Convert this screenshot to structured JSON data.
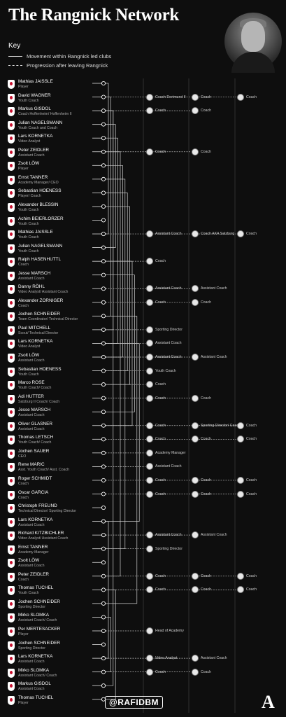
{
  "title": "The Rangnick Network",
  "key": {
    "heading": "Key",
    "solid_label": "Movement within Rangnick led clubs",
    "dashed_label": "Progression after leaving Rangnick"
  },
  "handle": "@RAFIDBM",
  "brand": "A",
  "people": [
    {
      "name": "Mathias JAISSLE",
      "role": "Player",
      "next": []
    },
    {
      "name": "David WAGNER",
      "role": "Youth Coach",
      "next": [
        "Coach Dortmund II",
        "Coach",
        "Coach"
      ]
    },
    {
      "name": "Markus GISDOL",
      "role": "Coach Hoffenheim/ Hoffenheim II",
      "next": [
        "Coach",
        "Coach"
      ]
    },
    {
      "name": "Julian NAGELSMANN",
      "role": "Youth Coach and Coach",
      "next": []
    },
    {
      "name": "Lars KORNETKA",
      "role": "Video Analyst",
      "next": []
    },
    {
      "name": "Peter ZEIDLER",
      "role": "Assistant Coach",
      "next": [
        "Coach",
        "Coach"
      ]
    },
    {
      "name": "Zsolt LÖW",
      "role": "Player",
      "next": []
    },
    {
      "name": "Ernst TANNER",
      "role": "Academy Manager/ CEO",
      "next": []
    },
    {
      "name": "Sebastian HOENESS",
      "role": "Player/ Coach",
      "next": []
    },
    {
      "name": "Alexander BLESSIN",
      "role": "Youth Coach",
      "next": []
    },
    {
      "name": "Achim BEIERLORZER",
      "role": "Youth Coach",
      "next": []
    },
    {
      "name": "Mathias JAISSLE",
      "role": "Youth Coach",
      "next": [
        "Assistant Coach",
        "Coach AKA Salzburg",
        "Coach"
      ]
    },
    {
      "name": "Julian NAGELSMANN",
      "role": "Youth Coach",
      "next": []
    },
    {
      "name": "Ralph HASENHUTTL",
      "role": "Coach",
      "next": [
        "Coach"
      ]
    },
    {
      "name": "Jesse MARSCH",
      "role": "Assistant Coach",
      "next": []
    },
    {
      "name": "Danny RÖHL",
      "role": "Video Analyst/ Assistant Coach",
      "next": [
        "Assistant Coach",
        "Assistant Coach"
      ]
    },
    {
      "name": "Alexander ZORNIGER",
      "role": "Coach",
      "next": [
        "Coach",
        "Coach"
      ]
    },
    {
      "name": "Jochen SCHNEIDER",
      "role": "Team Coordinator/ Technical Director",
      "next": []
    },
    {
      "name": "Paul MITCHELL",
      "role": "Scout/ Technical Director",
      "next": [
        "Sporting Director"
      ]
    },
    {
      "name": "Lars KORNETKA",
      "role": "Video Analyst",
      "next": [
        "Assistant Coach"
      ]
    },
    {
      "name": "Zsolt LÖW",
      "role": "Assistant Coach",
      "next": [
        "Assistant Coach",
        "Assistant Coach"
      ]
    },
    {
      "name": "Sebastian HOENESS",
      "role": "Youth Coach",
      "next": [
        "Youth Coach"
      ]
    },
    {
      "name": "Marco ROSE",
      "role": "Youth Coach/ Coach",
      "next": [
        "Coach"
      ]
    },
    {
      "name": "Adi HUTTER",
      "role": "Salzburg II Coach/ Coach",
      "next": [
        "Coach",
        "Coach"
      ]
    },
    {
      "name": "Jesse MARSCH",
      "role": "Assistant Coach",
      "next": []
    },
    {
      "name": "Oliver GLASNER",
      "role": "Assistant Coach",
      "next": [
        "Coach",
        "Sporting Director/ Coach",
        "Coach"
      ]
    },
    {
      "name": "Thomas LETSCH",
      "role": "Youth Coach/ Coach",
      "next": [
        "Coach",
        "Coach",
        "Coach"
      ]
    },
    {
      "name": "Jochen SAUER",
      "role": "CEO",
      "next": [
        "Academy Manager"
      ]
    },
    {
      "name": "Rene MARIC",
      "role": "Asst. Youth Coach/ Asst. Coach",
      "next": [
        "Assistant Coach"
      ]
    },
    {
      "name": "Roger SCHMIDT",
      "role": "Coach",
      "next": [
        "Coach",
        "Coach",
        "Coach"
      ]
    },
    {
      "name": "Oscar GARCIA",
      "role": "Coach",
      "next": [
        "Coach",
        "Coach",
        "Coach"
      ]
    },
    {
      "name": "Christoph FREUND",
      "role": "Technical Director/ Sporting Director",
      "next": []
    },
    {
      "name": "Lars KORNETKA",
      "role": "Assistant Coach",
      "next": []
    },
    {
      "name": "Richard KITZBICHLER",
      "role": "Video Analyst/ Assistant Coach",
      "next": [
        "Assistant Coach",
        "Assistant Coach"
      ]
    },
    {
      "name": "Ernst TANNER",
      "role": "Academy Manager",
      "next": [
        "Sporting Director"
      ]
    },
    {
      "name": "Zsolt LÖW",
      "role": "Assistant Coach",
      "next": []
    },
    {
      "name": "Peter ZEIDLER",
      "role": "Coach",
      "next": [
        "Coach",
        "Coach",
        "Coach"
      ]
    },
    {
      "name": "Thomas TUCHEL",
      "role": "Youth Coach",
      "next": [
        "Coach",
        "Coach",
        "Coach"
      ]
    },
    {
      "name": "Jochen SCHNEIDER",
      "role": "Sporting Director",
      "next": []
    },
    {
      "name": "Mirko SLOMKA",
      "role": "Assistant Coach/ Coach",
      "next": []
    },
    {
      "name": "Per MERTESACKER",
      "role": "Player",
      "next": [
        "Head of Academy"
      ]
    },
    {
      "name": "Jochen SCHNEIDER",
      "role": "Sporting Director",
      "next": []
    },
    {
      "name": "Lars KORNETKA",
      "role": "Assistant Coach",
      "next": [
        "Video Analyst",
        "Assistant Coach"
      ]
    },
    {
      "name": "Mirko SLOMKA",
      "role": "Assistant Coach/ Coach",
      "next": [
        "Coach",
        "Coach"
      ]
    },
    {
      "name": "Markus GISDOL",
      "role": "Assistant Coach",
      "next": []
    },
    {
      "name": "Thomas TUCHEL",
      "role": "Player",
      "next": []
    }
  ]
}
